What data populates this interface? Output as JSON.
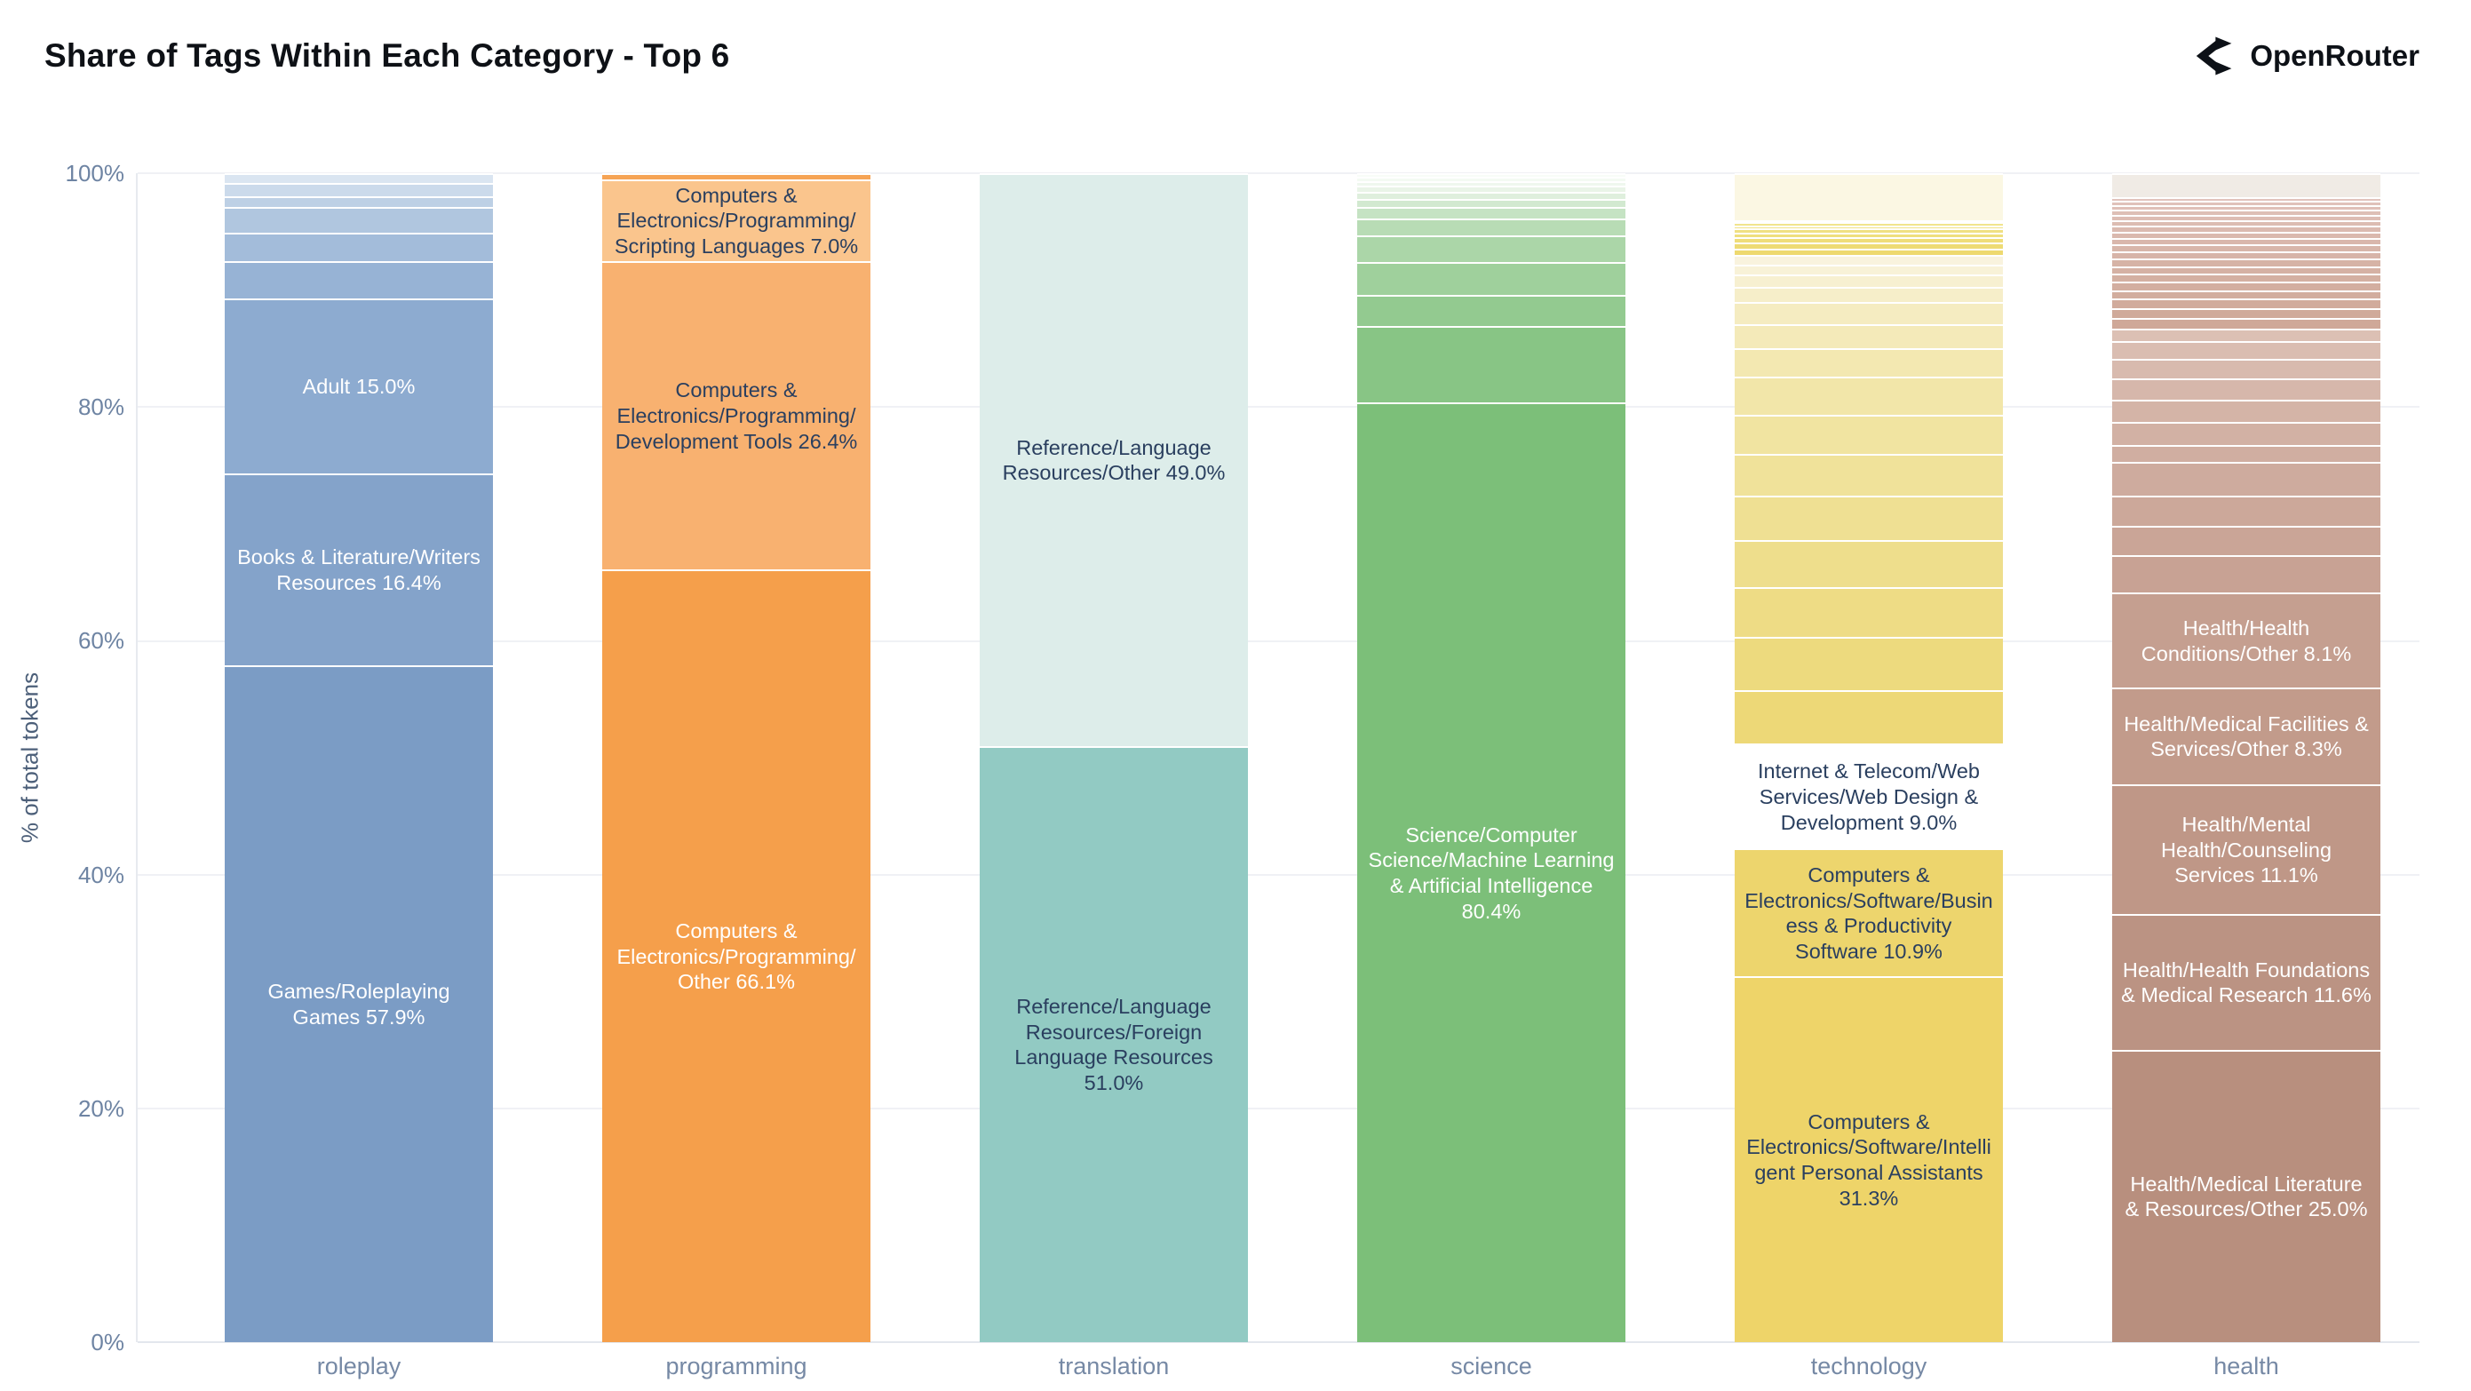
{
  "header": {
    "title": "Share of Tags Within Each Category - Top 6",
    "brand": "OpenRouter"
  },
  "chart_data": {
    "type": "bar",
    "stacked": true,
    "title": "Share of Tags Within Each Category - Top 6",
    "xlabel": "",
    "ylabel": "% of total tokens",
    "ylim": [
      0,
      100
    ],
    "grid": true,
    "legend": false,
    "yticks": [
      "0%",
      "20%",
      "40%",
      "60%",
      "80%",
      "100%"
    ],
    "categories": [
      "roleplay",
      "programming",
      "translation",
      "science",
      "technology",
      "health"
    ],
    "colors": {
      "label_dark": "#2a3f5f",
      "label_light": "#ffffff",
      "axis_text": "#6e84a3",
      "title_text": "#0e1116"
    },
    "bars": [
      {
        "category": "roleplay",
        "segments": [
          {
            "label": "Games/Roleplaying Games",
            "value": 57.9,
            "color": "#7b9cc5",
            "text": "#ffffff",
            "labeled": true
          },
          {
            "label": "Books & Literature/Writers Resources",
            "value": 16.4,
            "color": "#84a3ca",
            "text": "#ffffff",
            "labeled": true
          },
          {
            "label": "Adult",
            "value": 15.0,
            "color": "#8dabd0",
            "text": "#ffffff",
            "labeled": true
          },
          {
            "label": "",
            "value": 3.2,
            "color": "#97b3d5",
            "labeled": false
          },
          {
            "label": "",
            "value": 2.4,
            "color": "#a3bcda",
            "labeled": false
          },
          {
            "label": "",
            "value": 2.2,
            "color": "#b0c6df",
            "labeled": false
          },
          {
            "label": "",
            "value": 0.9,
            "color": "#bdd0e5",
            "labeled": false
          },
          {
            "label": "",
            "value": 1.2,
            "color": "#cbdaeb",
            "labeled": false
          },
          {
            "label": "",
            "value": 0.8,
            "color": "#dae5f1",
            "labeled": false
          }
        ]
      },
      {
        "category": "programming",
        "segments": [
          {
            "label": "Computers & Electronics/Programming/Other",
            "value": 66.1,
            "color": "#f59f4b",
            "text": "#ffffff",
            "labeled": true
          },
          {
            "label": "Computers & Electronics/Programming/Development Tools",
            "value": 26.4,
            "color": "#f8b170",
            "text": "#2a3f5f",
            "labeled": true
          },
          {
            "label": "Computers & Electronics/Programming/Scripting Languages",
            "value": 7.0,
            "color": "#fac58d",
            "text": "#2a3f5f",
            "labeled": true
          },
          {
            "label": "",
            "value": 0.5,
            "color": "#f6a455",
            "labeled": false
          }
        ]
      },
      {
        "category": "translation",
        "segments": [
          {
            "label": "Reference/Language Resources/Foreign Language Resources",
            "value": 51.0,
            "color": "#92cac3",
            "text": "#2a3f5f",
            "labeled": true
          },
          {
            "label": "Reference/Language Resources/Other",
            "value": 49.0,
            "color": "#ddedea",
            "text": "#2a3f5f",
            "labeled": true
          }
        ]
      },
      {
        "category": "science",
        "segments": [
          {
            "label": "Science/Computer Science/Machine Learning & Artificial Intelligence",
            "value": 80.4,
            "color": "#7cbf79",
            "text": "#ffffff",
            "labeled": true
          },
          {
            "label": "",
            "value": 6.5,
            "color": "#88c585",
            "labeled": false
          },
          {
            "label": "",
            "value": 2.7,
            "color": "#93ca90",
            "labeled": false
          },
          {
            "label": "",
            "value": 2.8,
            "color": "#9fd09c",
            "labeled": false
          },
          {
            "label": "",
            "value": 2.3,
            "color": "#abd6a8",
            "labeled": false
          },
          {
            "label": "",
            "value": 1.4,
            "color": "#b8dcb5",
            "labeled": false
          },
          {
            "label": "",
            "value": 1.0,
            "color": "#c5e3c3",
            "labeled": false
          },
          {
            "label": "",
            "value": 0.7,
            "color": "#d2e9d0",
            "labeled": false
          },
          {
            "label": "",
            "value": 0.6,
            "color": "#dfefdd",
            "labeled": false
          },
          {
            "label": "",
            "value": 0.5,
            "color": "#e9f4e7",
            "labeled": false
          },
          {
            "label": "",
            "value": 0.45,
            "color": "#eff7ee",
            "labeled": false
          },
          {
            "label": "",
            "value": 0.35,
            "color": "#f4faf3",
            "labeled": false
          },
          {
            "label": "",
            "value": 0.3,
            "color": "#f8fcf7",
            "labeled": false
          }
        ]
      },
      {
        "category": "technology",
        "segments": [
          {
            "label": "Computers & Electronics/Software/Intelligent Personal Assistants",
            "value": 31.3,
            "color": "#eed469",
            "text": "#2a3f5f",
            "labeled": true
          },
          {
            "label": "Computers & Electronics/Software/Business & Productivity Software",
            "value": 10.9,
            "color": "#edd56d",
            "text": "#2a3f5f",
            "labeled": true
          },
          {
            "label": "Internet & Telecom/Web Services/Web Design & Development",
            "value": 9.0,
            "color": "#ecd671, ",
            "text": "#2a3f5f",
            "labeled": true
          },
          {
            "label": "",
            "value": 4.6,
            "color": "#edd877",
            "labeled": false
          },
          {
            "label": "",
            "value": 4.5,
            "color": "#edda7e",
            "labeled": false
          },
          {
            "label": "",
            "value": 4.3,
            "color": "#eedc85",
            "labeled": false
          },
          {
            "label": "",
            "value": 4.0,
            "color": "#eede8c",
            "labeled": false
          },
          {
            "label": "",
            "value": 3.8,
            "color": "#efe093",
            "labeled": false
          },
          {
            "label": "",
            "value": 3.6,
            "color": "#f0e29a",
            "labeled": false
          },
          {
            "label": "",
            "value": 3.3,
            "color": "#f1e4a1",
            "labeled": false
          },
          {
            "label": "",
            "value": 3.3,
            "color": "#f2e6a9",
            "labeled": false
          },
          {
            "label": "",
            "value": 2.4,
            "color": "#f3e8b1",
            "labeled": false
          },
          {
            "label": "",
            "value": 2.1,
            "color": "#f4eab9",
            "labeled": false
          },
          {
            "label": "",
            "value": 1.9,
            "color": "#f5ecc1",
            "labeled": false
          },
          {
            "label": "",
            "value": 1.3,
            "color": "#f6eec9",
            "labeled": false
          },
          {
            "label": "",
            "value": 1.0,
            "color": "#f7f0d1",
            "labeled": false
          },
          {
            "label": "",
            "value": 0.9,
            "color": "#f8f2d8",
            "labeled": false
          },
          {
            "label": "",
            "value": 0.8,
            "color": "#f9f3de",
            "labeled": false
          },
          {
            "label": "",
            "value": 0.55,
            "color": "#eed96f",
            "labeled": false
          },
          {
            "label": "",
            "value": 0.5,
            "color": "#eedb74",
            "labeled": false
          },
          {
            "label": "",
            "value": 0.45,
            "color": "#efdd79",
            "labeled": false
          },
          {
            "label": "",
            "value": 0.4,
            "color": "#efdf7e",
            "labeled": false
          },
          {
            "label": "",
            "value": 0.35,
            "color": "#f0e083",
            "labeled": false
          },
          {
            "label": "",
            "value": 0.3,
            "color": "#f0e288",
            "labeled": false
          },
          {
            "label": "",
            "value": 0.25,
            "color": "#f1e48d",
            "labeled": false
          },
          {
            "label": "",
            "value": 0.2,
            "color": "#f1e592",
            "labeled": false
          },
          {
            "label": "",
            "value": 4.0,
            "color": "#fbf7e3",
            "labeled": false
          }
        ]
      },
      {
        "category": "health",
        "segments": [
          {
            "label": "Health/Medical Literature & Resources/Other",
            "value": 25.0,
            "color": "#b88f7e",
            "text": "#ffffff",
            "labeled": true
          },
          {
            "label": "Health/Health Foundations & Medical Research",
            "value": 11.6,
            "color": "#bb9383",
            "text": "#ffffff",
            "labeled": true
          },
          {
            "label": "Health/Mental Health/Counseling Services",
            "value": 11.1,
            "color": "#bf9787",
            "text": "#ffffff",
            "labeled": true
          },
          {
            "label": "Health/Medical Facilities & Services/Other",
            "value": 8.3,
            "color": "#c29b8b",
            "text": "#ffffff",
            "labeled": true
          },
          {
            "label": "Health/Health Conditions/Other",
            "value": 8.1,
            "color": "#c59f90",
            "text": "#ffffff",
            "labeled": true
          },
          {
            "label": "",
            "value": 3.2,
            "color": "#c8a294",
            "labeled": false
          },
          {
            "label": "",
            "value": 2.5,
            "color": "#caa597",
            "labeled": false
          },
          {
            "label": "",
            "value": 2.6,
            "color": "#cca89a",
            "labeled": false
          },
          {
            "label": "",
            "value": 2.9,
            "color": "#ceab9e",
            "labeled": false
          },
          {
            "label": "",
            "value": 1.4,
            "color": "#d0aea1",
            "labeled": false
          },
          {
            "label": "",
            "value": 2.0,
            "color": "#d2b1a4",
            "labeled": false
          },
          {
            "label": "",
            "value": 1.9,
            "color": "#d4b4a7",
            "labeled": false
          },
          {
            "label": "",
            "value": 1.8,
            "color": "#d6b7ab",
            "labeled": false
          },
          {
            "label": "",
            "value": 1.7,
            "color": "#d8baae",
            "labeled": false
          },
          {
            "label": "",
            "value": 1.5,
            "color": "#dabdb1",
            "labeled": false
          },
          {
            "label": "",
            "value": 1.1,
            "color": "#dcc0b4",
            "labeled": false
          },
          {
            "label": "",
            "value": 0.9,
            "color": "#cfa898",
            "labeled": false
          },
          {
            "label": "",
            "value": 0.85,
            "color": "#d0aa9a",
            "labeled": false
          },
          {
            "label": "",
            "value": 0.8,
            "color": "#d1ab9c",
            "labeled": false
          },
          {
            "label": "",
            "value": 0.75,
            "color": "#d2ad9e",
            "labeled": false
          },
          {
            "label": "",
            "value": 0.7,
            "color": "#d3aea0",
            "labeled": false
          },
          {
            "label": "",
            "value": 0.7,
            "color": "#d4b0a2",
            "labeled": false
          },
          {
            "label": "",
            "value": 0.65,
            "color": "#d5b1a4",
            "labeled": false
          },
          {
            "label": "",
            "value": 0.65,
            "color": "#d6b3a6",
            "labeled": false
          },
          {
            "label": "",
            "value": 0.6,
            "color": "#d7b4a8",
            "labeled": false
          },
          {
            "label": "",
            "value": 0.6,
            "color": "#d8b6aa",
            "labeled": false
          },
          {
            "label": "",
            "value": 0.55,
            "color": "#d9b7ac",
            "labeled": false
          },
          {
            "label": "",
            "value": 0.55,
            "color": "#dab9ae",
            "labeled": false
          },
          {
            "label": "",
            "value": 0.5,
            "color": "#dbbab0",
            "labeled": false
          },
          {
            "label": "",
            "value": 0.5,
            "color": "#dcbcb2",
            "labeled": false
          },
          {
            "label": "",
            "value": 0.45,
            "color": "#ddbdb4",
            "labeled": false
          },
          {
            "label": "",
            "value": 0.45,
            "color": "#debfb6",
            "labeled": false
          },
          {
            "label": "",
            "value": 0.4,
            "color": "#dfc0b8",
            "labeled": false
          },
          {
            "label": "",
            "value": 0.35,
            "color": "#e0c2ba",
            "labeled": false
          },
          {
            "label": "",
            "value": 0.3,
            "color": "#e1c3bc",
            "labeled": false
          },
          {
            "label": "",
            "value": 2.05,
            "color": "#f0ebe5",
            "labeled": false
          }
        ]
      }
    ]
  }
}
